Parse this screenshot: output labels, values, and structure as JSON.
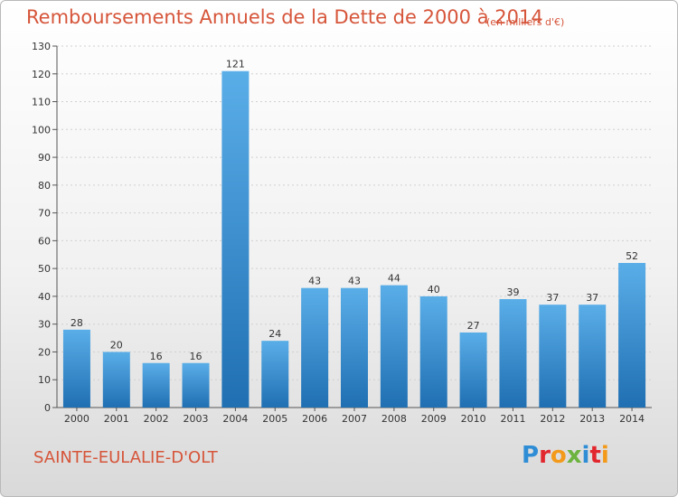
{
  "header": {
    "title": "Remboursements Annuels de la Dette de 2000 à 2014",
    "subtitle": "(en milliers d'€)"
  },
  "footer": {
    "commune": "SAINTE-EULALIE-D'OLT",
    "logo": "Proxiti",
    "logo_colors": [
      "#2f8dd6",
      "#e2262d",
      "#f39a1b",
      "#6db33f",
      "#2f8dd6",
      "#e2262d",
      "#f39a1b"
    ]
  },
  "colors": {
    "bar_top": "#5aaee8",
    "bar_bottom": "#1f6fb2",
    "title": "#d6553a"
  },
  "chart_data": {
    "type": "bar",
    "categories": [
      "2000",
      "2001",
      "2002",
      "2003",
      "2004",
      "2005",
      "2006",
      "2007",
      "2008",
      "2009",
      "2010",
      "2011",
      "2012",
      "2013",
      "2014"
    ],
    "values": [
      28,
      20,
      16,
      16,
      121,
      24,
      43,
      43,
      44,
      40,
      27,
      39,
      37,
      37,
      52
    ],
    "title": "Remboursements Annuels de la Dette de 2000 à 2014",
    "ylim": [
      0,
      130
    ],
    "yticks": [
      0,
      10,
      20,
      30,
      40,
      50,
      60,
      70,
      80,
      90,
      100,
      110,
      120,
      130
    ],
    "grid": true,
    "legend": "none"
  }
}
